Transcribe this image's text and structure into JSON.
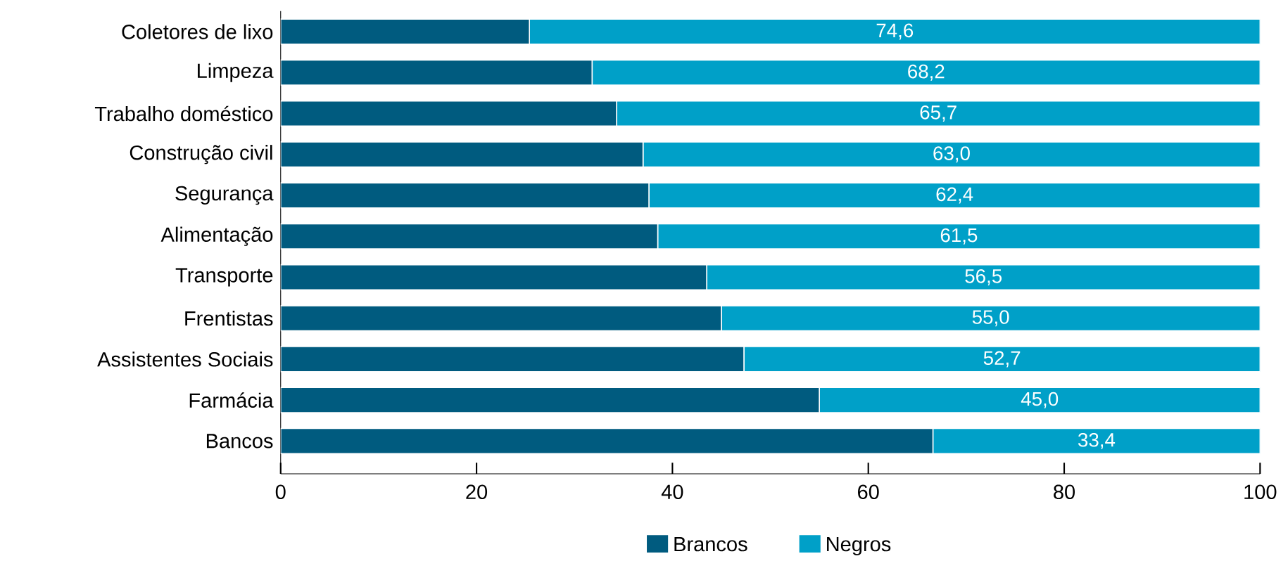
{
  "chart_data": {
    "type": "bar",
    "orientation": "horizontal",
    "stacked": true,
    "categories": [
      "Coletores de lixo",
      "Limpeza",
      "Trabalho doméstico",
      "Construção civil",
      "Segurança",
      "Alimentação",
      "Transporte",
      "Frentistas",
      "Assistentes Sociais",
      "Farmácia",
      "Bancos"
    ],
    "series": [
      {
        "name": "Brancos",
        "color": "#005b7f",
        "values": [
          25.4,
          31.8,
          34.3,
          37.0,
          37.6,
          38.5,
          43.5,
          45.0,
          47.3,
          55.0,
          66.6
        ]
      },
      {
        "name": "Negros",
        "color": "#00a0c8",
        "values": [
          74.6,
          68.2,
          65.7,
          63.0,
          62.4,
          61.5,
          56.5,
          55.0,
          52.7,
          45.0,
          33.4
        ],
        "value_labels": [
          "74,6",
          "68,2",
          "65,7",
          "63,0",
          "62,4",
          "61,5",
          "56,5",
          "55,0",
          "52,7",
          "45,0",
          "33,4"
        ]
      }
    ],
    "xlim": [
      0,
      100
    ],
    "xticks": [
      0,
      20,
      40,
      60,
      80,
      100
    ],
    "grid": false,
    "legend": "bottom"
  }
}
